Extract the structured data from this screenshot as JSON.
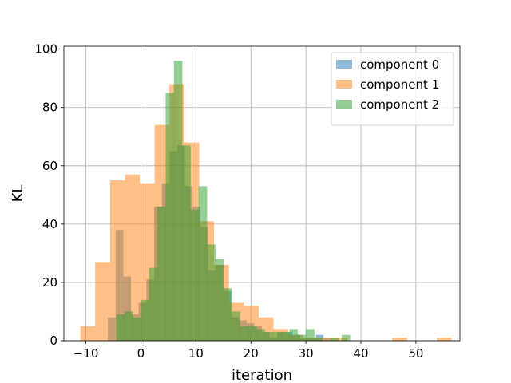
{
  "chart_data": {
    "type": "bar",
    "subtype": "overlapping-histogram",
    "xlabel": "iteration",
    "ylabel": "KL",
    "xlim": [
      -14,
      58
    ],
    "ylim": [
      0,
      101
    ],
    "xticks": [
      -10,
      0,
      10,
      20,
      30,
      40,
      50
    ],
    "yticks": [
      0,
      20,
      40,
      60,
      80,
      100
    ],
    "grid": true,
    "legend_position": "top-right",
    "series": [
      {
        "name": "component 0",
        "color": "#1f77b4",
        "opacity": 0.5,
        "bin_width": 1.4,
        "bins": [
          [
            -6,
            8
          ],
          [
            -4.6,
            38
          ],
          [
            -3.2,
            22
          ],
          [
            -1.8,
            9
          ],
          [
            -0.4,
            13
          ],
          [
            1,
            21
          ],
          [
            2.4,
            46
          ],
          [
            3.8,
            54
          ],
          [
            5.2,
            65
          ],
          [
            6.6,
            67
          ],
          [
            8,
            53
          ],
          [
            9.4,
            46
          ],
          [
            10.8,
            39
          ],
          [
            12.2,
            24
          ],
          [
            13.6,
            26
          ],
          [
            15,
            17
          ],
          [
            16.4,
            8
          ],
          [
            17.8,
            7
          ],
          [
            19.2,
            6
          ],
          [
            20.6,
            5
          ],
          [
            22,
            3
          ],
          [
            23.4,
            1
          ],
          [
            24.8,
            3
          ],
          [
            26.2,
            3
          ],
          [
            27.6,
            2
          ],
          [
            29,
            1
          ],
          [
            30.4,
            1
          ],
          [
            31.8,
            2
          ],
          [
            33.2,
            1
          ]
        ]
      },
      {
        "name": "component 1",
        "color": "#ff7f0e",
        "opacity": 0.5,
        "bin_width": 2.7,
        "bins": [
          [
            -11,
            5
          ],
          [
            -8.3,
            27
          ],
          [
            -5.6,
            55
          ],
          [
            -2.9,
            57
          ],
          [
            -0.2,
            54
          ],
          [
            2.5,
            74
          ],
          [
            5.2,
            88
          ],
          [
            7.9,
            68
          ],
          [
            10.6,
            41
          ],
          [
            13.3,
            26
          ],
          [
            16,
            13
          ],
          [
            18.7,
            12
          ],
          [
            21.4,
            8
          ],
          [
            24.1,
            4
          ],
          [
            26.8,
            2
          ],
          [
            29.5,
            1
          ],
          [
            32.2,
            1
          ],
          [
            34.9,
            1
          ],
          [
            45.7,
            1
          ],
          [
            53.8,
            1
          ]
        ]
      },
      {
        "name": "component 2",
        "color": "#2ca02c",
        "opacity": 0.5,
        "bin_width": 1.55,
        "bins": [
          [
            -4.5,
            9
          ],
          [
            -3,
            10
          ],
          [
            -1.5,
            8
          ],
          [
            0,
            14
          ],
          [
            1.5,
            25
          ],
          [
            3,
            46
          ],
          [
            4.5,
            85
          ],
          [
            6,
            96
          ],
          [
            7.5,
            67
          ],
          [
            9,
            45
          ],
          [
            10.5,
            53
          ],
          [
            12,
            33
          ],
          [
            13.5,
            28
          ],
          [
            15,
            18
          ],
          [
            16.5,
            10
          ],
          [
            18,
            5
          ],
          [
            19.5,
            5
          ],
          [
            21,
            4
          ],
          [
            22.5,
            3
          ],
          [
            24,
            3
          ],
          [
            25.5,
            3
          ],
          [
            27,
            4
          ],
          [
            28.5,
            2
          ],
          [
            30,
            4
          ],
          [
            31.5,
            1
          ],
          [
            34.5,
            1
          ],
          [
            36.5,
            2
          ]
        ]
      }
    ]
  }
}
